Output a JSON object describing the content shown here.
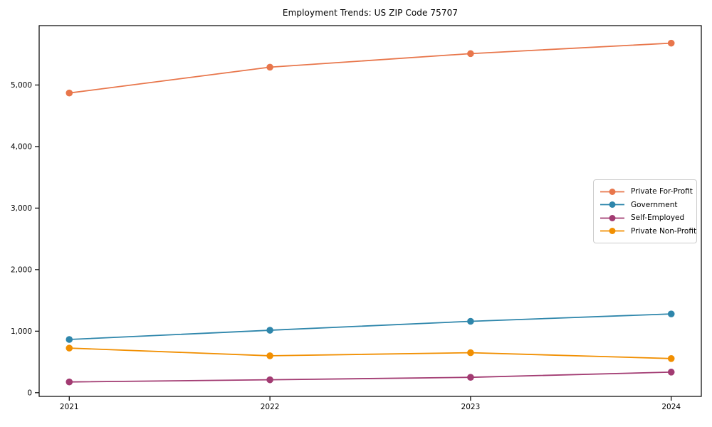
{
  "title": "Employment Trends: US ZIP Code 75707",
  "chart_data": {
    "type": "line",
    "title": "Employment Trends: US ZIP Code 75707",
    "xlabel": "",
    "ylabel": "",
    "x": [
      2021,
      2022,
      2023,
      2024
    ],
    "xtick_labels": [
      "2021",
      "2022",
      "2023",
      "2024"
    ],
    "yticks": [
      0,
      1000,
      2000,
      3000,
      4000,
      5000
    ],
    "ytick_labels": [
      "0",
      "1,000",
      "2,000",
      "3,000",
      "4,000",
      "5,000"
    ],
    "xlim": [
      2020.85,
      2024.15
    ],
    "ylim": [
      -60,
      5965
    ],
    "grid": false,
    "legend_position": "center right",
    "marker": "circle",
    "series": [
      {
        "name": "Private For-Profit",
        "color": "#E8764B",
        "values": [
          4870,
          5290,
          5510,
          5680
        ]
      },
      {
        "name": "Government",
        "color": "#2E86AB",
        "values": [
          865,
          1015,
          1160,
          1280
        ]
      },
      {
        "name": "Self-Employed",
        "color": "#A23B72",
        "values": [
          175,
          210,
          250,
          335
        ]
      },
      {
        "name": "Private Non-Profit",
        "color": "#F18F01",
        "values": [
          725,
          600,
          650,
          555
        ]
      }
    ],
    "axis_color": "#000000"
  }
}
